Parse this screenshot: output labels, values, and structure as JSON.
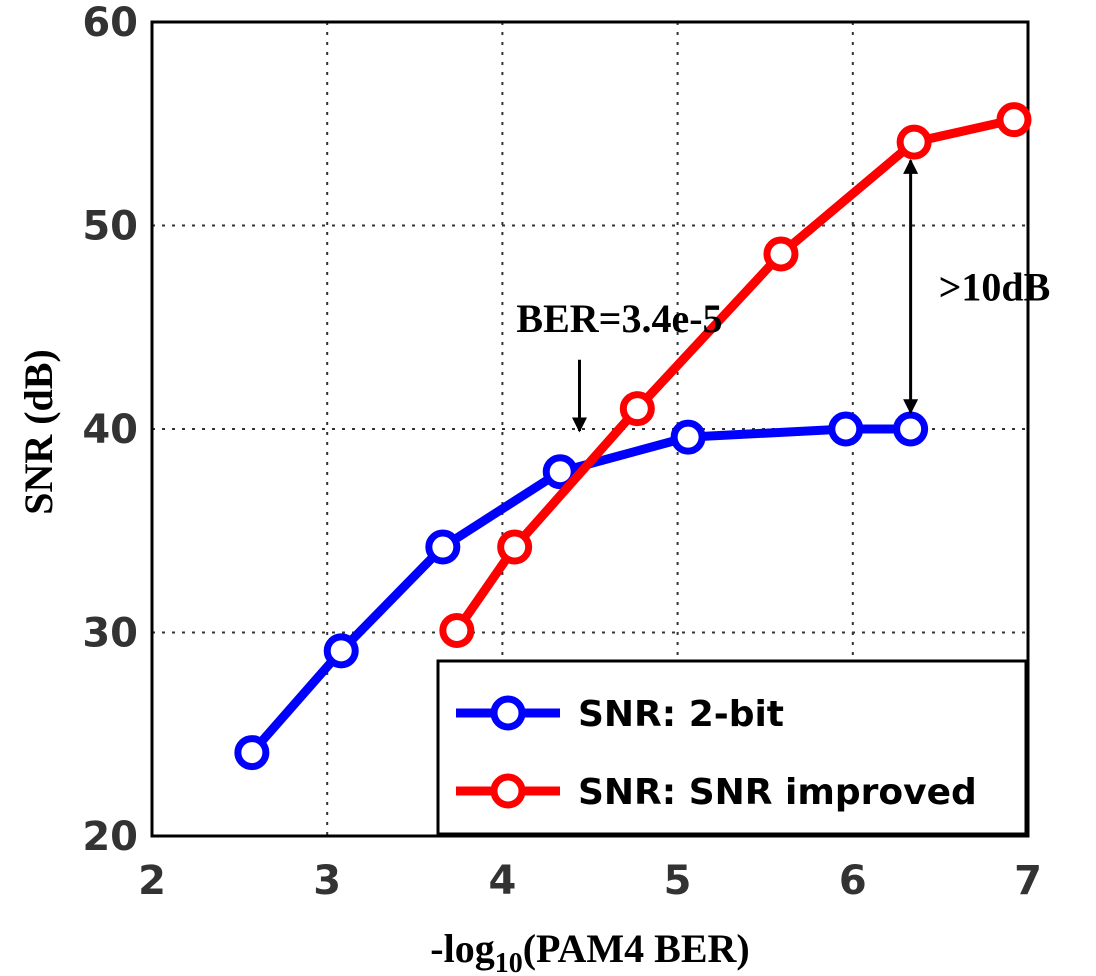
{
  "chart_data": {
    "type": "line",
    "xlabel_prefix": "-log",
    "xlabel_sub": "10",
    "xlabel_suffix": "(PAM4 BER)",
    "ylabel": "SNR (dB)",
    "xlim": [
      2,
      7
    ],
    "ylim": [
      20,
      60
    ],
    "x_ticks": [
      2,
      3,
      4,
      5,
      6,
      7
    ],
    "y_ticks": [
      20,
      30,
      40,
      50,
      60
    ],
    "grid": true,
    "legend_position": "bottom-right",
    "series": [
      {
        "name": "SNR: 2-bit",
        "color": "#0000ff",
        "x": [
          2.57,
          3.08,
          3.66,
          4.33,
          5.06,
          5.96,
          6.33
        ],
        "y": [
          24.1,
          29.1,
          34.2,
          37.9,
          39.6,
          40.0,
          40.0
        ]
      },
      {
        "name": "SNR: SNR improved",
        "color": "#ff0000",
        "x": [
          3.74,
          4.07,
          4.77,
          5.59,
          6.35,
          6.92
        ],
        "y": [
          30.1,
          34.2,
          41.0,
          48.6,
          54.1,
          55.2
        ]
      }
    ],
    "annotations": [
      {
        "text": "BER=3.4e-5",
        "arrow": "down",
        "x": 4.44,
        "y_from": 43.4,
        "y_to": 39.9
      },
      {
        "text": ">10dB",
        "arrow": "double",
        "x": 6.33,
        "y_from": 40.8,
        "y_to": 53.2
      }
    ]
  }
}
